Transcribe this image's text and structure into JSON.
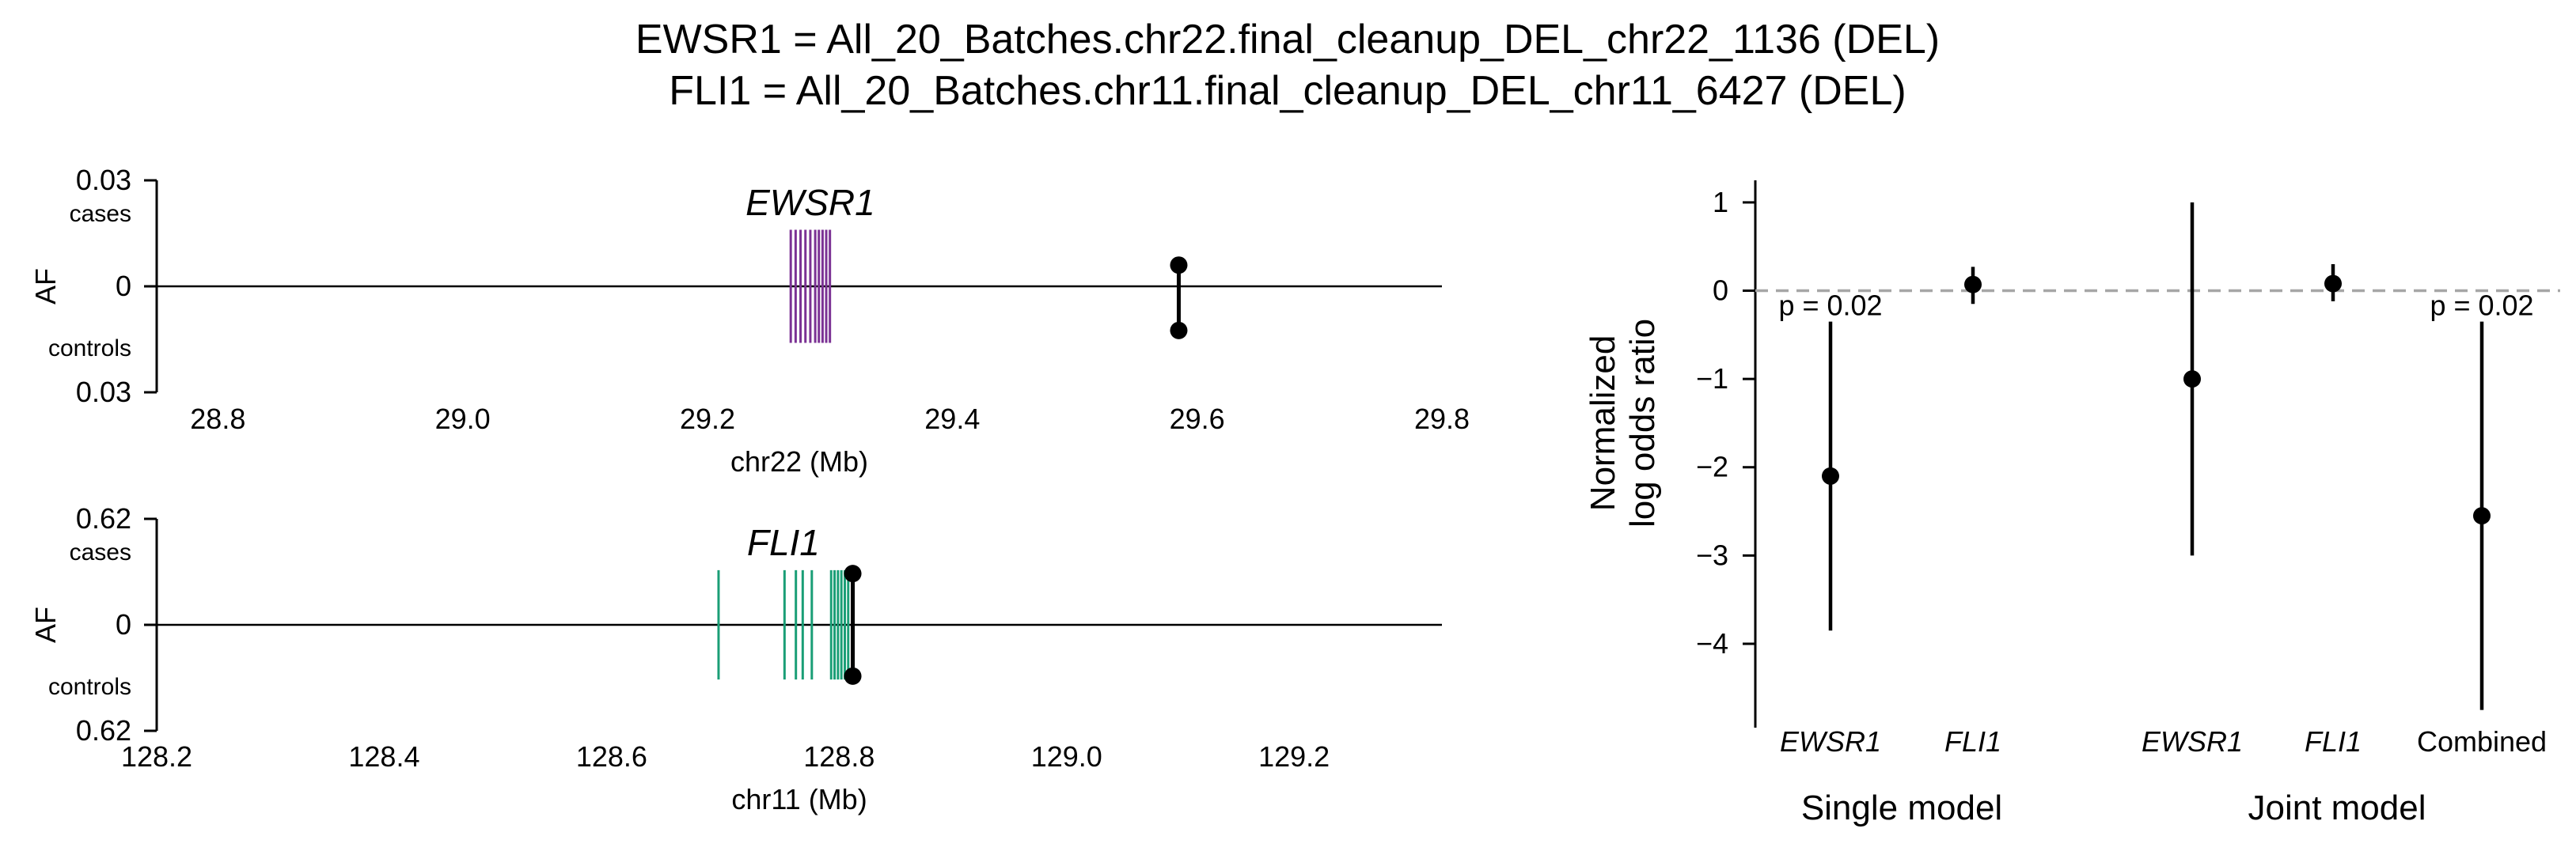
{
  "figure": {
    "title_line1": "EWSR1 = All_20_Batches.chr22.final_cleanup_DEL_chr22_1136 (DEL)",
    "title_line2": "FLI1 = All_20_Batches.chr11.final_cleanup_DEL_chr11_6427 (DEL)"
  },
  "chart_data": [
    {
      "type": "scatter",
      "panel": "EWSR1 locus",
      "gene_label": "EWSR1",
      "gene_color": "#7b3294",
      "xlabel": "chr22 (Mb)",
      "ylabel": "AF",
      "xlim": [
        28.75,
        29.8
      ],
      "xticks": [
        28.8,
        29.0,
        29.2,
        29.4,
        29.6,
        29.8
      ],
      "xtick_labels": [
        "28.8",
        "29.0",
        "29.2",
        "29.4",
        "29.6",
        "29.8"
      ],
      "ylim": [
        -0.03,
        0.03
      ],
      "yticks": [
        0.03,
        0,
        -0.03
      ],
      "ytick_labels": [
        "0.03",
        "0",
        "0.03"
      ],
      "ytick_sublabels": [
        "cases",
        "",
        "controls"
      ],
      "exons": [
        29.268,
        29.272,
        29.276,
        29.28,
        29.284,
        29.288,
        29.291,
        29.294,
        29.297,
        29.3
      ],
      "exon_half_height": 0.016,
      "variants": [
        {
          "position": 29.585,
          "case_af": 0.006,
          "control_af": 0.0125
        }
      ]
    },
    {
      "type": "scatter",
      "panel": "FLI1 locus",
      "gene_label": "FLI1",
      "gene_color": "#1a9e76",
      "xlabel": "chr11 (Mb)",
      "ylabel": "AF",
      "xlim": [
        128.2,
        129.33
      ],
      "xticks": [
        128.2,
        128.4,
        128.6,
        128.8,
        129.0,
        129.2
      ],
      "xtick_labels": [
        "128.2",
        "128.4",
        "128.6",
        "128.8",
        "129.0",
        "129.2"
      ],
      "ylim": [
        -0.62,
        0.62
      ],
      "yticks": [
        0.62,
        0,
        -0.62
      ],
      "ytick_labels": [
        "0.62",
        "0",
        "0.62"
      ],
      "ytick_sublabels": [
        "cases",
        "",
        "controls"
      ],
      "exons": [
        128.694,
        128.752,
        128.762,
        128.768,
        128.776,
        128.793,
        128.796,
        128.799,
        128.802,
        128.805,
        128.808
      ],
      "exon_half_height": 0.32,
      "variants": [
        {
          "position": 128.812,
          "case_af": 0.3,
          "control_af": 0.3
        }
      ]
    },
    {
      "type": "scatter",
      "panel": "effect sizes",
      "ylabel_line1": "Normalized",
      "ylabel_line2": "log odds ratio",
      "ylim": [
        -4.95,
        1.25
      ],
      "yticks": [
        1,
        0,
        -1,
        -2,
        -3,
        -4
      ],
      "ytick_labels": [
        "1",
        "0",
        "−1",
        "−2",
        "−3",
        "−4"
      ],
      "reference_line": 0,
      "categories": [
        "EWSR1",
        "FLI1",
        "EWSR1",
        "FLI1",
        "Combined"
      ],
      "italic_categories": [
        true,
        true,
        true,
        true,
        false
      ],
      "groups": [
        "Single model",
        "Joint model"
      ],
      "points": [
        {
          "category": "EWSR1",
          "group": "Single model",
          "estimate": -2.1,
          "ci": [
            -3.85,
            -0.35
          ],
          "pvalue_label": "p = 0.02"
        },
        {
          "category": "FLI1",
          "group": "Single model",
          "estimate": 0.07,
          "ci": [
            -0.15,
            0.27
          ],
          "pvalue_label": ""
        },
        {
          "category": "EWSR1",
          "group": "Joint model",
          "estimate": -1.0,
          "ci": [
            -3.0,
            1.0
          ],
          "pvalue_label": ""
        },
        {
          "category": "FLI1",
          "group": "Joint model",
          "estimate": 0.08,
          "ci": [
            -0.12,
            0.3
          ],
          "pvalue_label": ""
        },
        {
          "category": "Combined",
          "group": "Joint model",
          "estimate": -2.55,
          "ci": [
            -4.75,
            -0.35
          ],
          "pvalue_label": "p = 0.02"
        }
      ]
    }
  ]
}
